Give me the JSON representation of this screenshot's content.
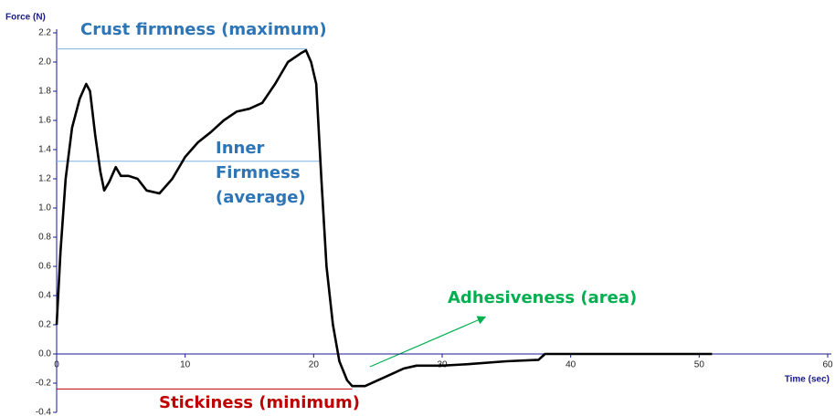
{
  "chart_data": {
    "type": "line",
    "y_label": "Force (N)",
    "x_label": "Time (sec)",
    "xlim": [
      0,
      60
    ],
    "xticks": [
      0,
      10,
      20,
      30,
      40,
      50,
      60
    ],
    "ylim": [
      -0.4,
      2.2
    ],
    "yticks": [
      -0.4,
      -0.2,
      {
        "value": 0,
        "label": "0.0"
      },
      0.2,
      0.4,
      0.6,
      0.8,
      {
        "value": 1,
        "label": "1.0"
      },
      1.2,
      1.4,
      1.6,
      1.8,
      {
        "value": 2,
        "label": "2.0"
      },
      2.2
    ],
    "axis_color": "#1a1a8c",
    "series": [
      {
        "color": "#000000",
        "x": [
          0,
          0.3,
          0.7,
          1.2,
          1.8,
          2.3,
          2.6,
          3,
          3.4,
          3.7,
          4.1,
          4.6,
          5,
          5.6,
          6.3,
          7,
          8,
          9,
          10,
          11,
          12,
          13,
          14,
          15,
          16,
          17,
          18,
          19,
          19.4,
          19.8,
          20.2,
          20.6,
          21,
          21.5,
          22,
          22.6,
          23,
          24,
          25,
          26,
          27,
          28,
          30,
          32,
          35,
          37.5,
          38,
          40,
          45,
          51
        ],
        "values": [
          0.2,
          0.7,
          1.2,
          1.55,
          1.75,
          1.85,
          1.8,
          1.5,
          1.25,
          1.12,
          1.18,
          1.28,
          1.22,
          1.22,
          1.2,
          1.12,
          1.1,
          1.2,
          1.35,
          1.45,
          1.52,
          1.6,
          1.66,
          1.68,
          1.72,
          1.85,
          2.0,
          2.06,
          2.08,
          2.0,
          1.85,
          1.2,
          0.6,
          0.2,
          -0.05,
          -0.18,
          -0.22,
          -0.22,
          -0.18,
          -0.14,
          -0.1,
          -0.08,
          -0.08,
          -0.07,
          -0.05,
          -0.04,
          0.0,
          0.0,
          0.0,
          0.0
        ]
      }
    ],
    "annotations": [
      {
        "lines": [
          "Crust firmness (maximum)"
        ],
        "y": 2.09,
        "x_range": [
          0,
          19.5
        ],
        "color": "#2e75b6",
        "line_color": "#7fb3e0"
      },
      {
        "lines": [
          "Inner",
          "Firmness",
          "(average)"
        ],
        "y": 1.32,
        "x_range": [
          0,
          20.5
        ],
        "color": "#2e75b6",
        "line_color": "#7fb3e0"
      },
      {
        "lines": [
          "Stickiness (minimum)"
        ],
        "y": -0.24,
        "x_range": [
          0,
          23
        ],
        "color": "#c00000",
        "line_color": "#c00000"
      },
      {
        "lines": [
          "Adhesiveness (area)"
        ],
        "color": "#00b050"
      }
    ]
  }
}
